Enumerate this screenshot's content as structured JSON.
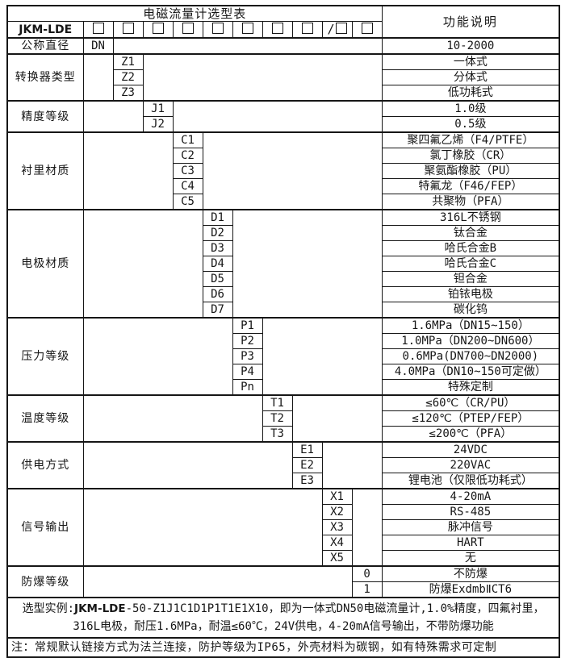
{
  "table": {
    "title": "电磁流量计选型表",
    "function_header": "功能说明",
    "model": {
      "prefix": "JKM-LDE",
      "boxes": 10,
      "slash": "/",
      "slash_box_index": 9
    },
    "groups": [
      {
        "label": "公称直径",
        "col": 1,
        "options": [
          {
            "code": "DN",
            "desc": "10-2000"
          }
        ]
      },
      {
        "label": "转换器类型",
        "col": 2,
        "options": [
          {
            "code": "Z1",
            "desc": "一体式"
          },
          {
            "code": "Z2",
            "desc": "分体式"
          },
          {
            "code": "Z3",
            "desc": "低功耗式"
          }
        ]
      },
      {
        "label": "精度等级",
        "col": 3,
        "options": [
          {
            "code": "J1",
            "desc": "1.0级"
          },
          {
            "code": "J2",
            "desc": "0.5级"
          }
        ]
      },
      {
        "label": "衬里材质",
        "col": 4,
        "options": [
          {
            "code": "C1",
            "desc": "聚四氟乙烯（F4/PTFE）"
          },
          {
            "code": "C2",
            "desc": "氯丁橡胶（CR）"
          },
          {
            "code": "C3",
            "desc": "聚氨酯橡胶（PU）"
          },
          {
            "code": "C4",
            "desc": "特氟龙（F46/FEP）"
          },
          {
            "code": "C5",
            "desc": "共聚物（PFA）"
          }
        ]
      },
      {
        "label": "电极材质",
        "col": 5,
        "options": [
          {
            "code": "D1",
            "desc": "316L不锈钢"
          },
          {
            "code": "D2",
            "desc": "钛合金"
          },
          {
            "code": "D3",
            "desc": "哈氏合金B"
          },
          {
            "code": "D4",
            "desc": "哈氏合金C"
          },
          {
            "code": "D5",
            "desc": "钽合金"
          },
          {
            "code": "D6",
            "desc": "铂铱电极"
          },
          {
            "code": "D7",
            "desc": "碳化钨"
          }
        ]
      },
      {
        "label": "压力等级",
        "col": 6,
        "options": [
          {
            "code": "P1",
            "desc": "1.6MPa（DN15~150）"
          },
          {
            "code": "P2",
            "desc": "1.0MPa（DN200~DN600）"
          },
          {
            "code": "P3",
            "desc": "0.6MPa(DN700~DN2000)"
          },
          {
            "code": "P4",
            "desc": "4.0MPa（DN10~150可定做）"
          },
          {
            "code": "Pn",
            "desc": "特殊定制"
          }
        ]
      },
      {
        "label": "温度等级",
        "col": 7,
        "options": [
          {
            "code": "T1",
            "desc": "≤60℃（CR/PU）"
          },
          {
            "code": "T2",
            "desc": "≤120℃（PTEP/FEP）"
          },
          {
            "code": "T3",
            "desc": "≤200℃（PFA）"
          }
        ]
      },
      {
        "label": "供电方式",
        "col": 8,
        "options": [
          {
            "code": "E1",
            "desc": "24VDC"
          },
          {
            "code": "E2",
            "desc": "220VAC"
          },
          {
            "code": "E3",
            "desc": "锂电池（仅限低功耗式）"
          }
        ]
      },
      {
        "label": "信号输出",
        "col": 9,
        "options": [
          {
            "code": "X1",
            "desc": "4-20mA"
          },
          {
            "code": "X2",
            "desc": "RS-485"
          },
          {
            "code": "X3",
            "desc": "脉冲信号"
          },
          {
            "code": "X4",
            "desc": "HART"
          },
          {
            "code": "X5",
            "desc": "无"
          }
        ]
      },
      {
        "label": "防爆等级",
        "col": 10,
        "options": [
          {
            "code": "0",
            "desc": "不防爆"
          },
          {
            "code": "1",
            "desc": "防爆ExdmbⅡCT6"
          }
        ]
      }
    ],
    "example": {
      "prefix": "选型实例:",
      "model_bold": "JKM-LDE",
      "rest": "-50-Z1J1C1D1P1T1E1X10，即为一体式DN50电磁流量计,1.0%精度，四氟衬里，316L电极，耐压1.6MPa，耐温≤60℃，24V供电，4-20mA信号输出，不带防爆功能"
    },
    "note": "注：常规默认链接方式为法兰连接，防护等级为IP65，外壳材料为碳钢，如有特殊需求可定制"
  }
}
